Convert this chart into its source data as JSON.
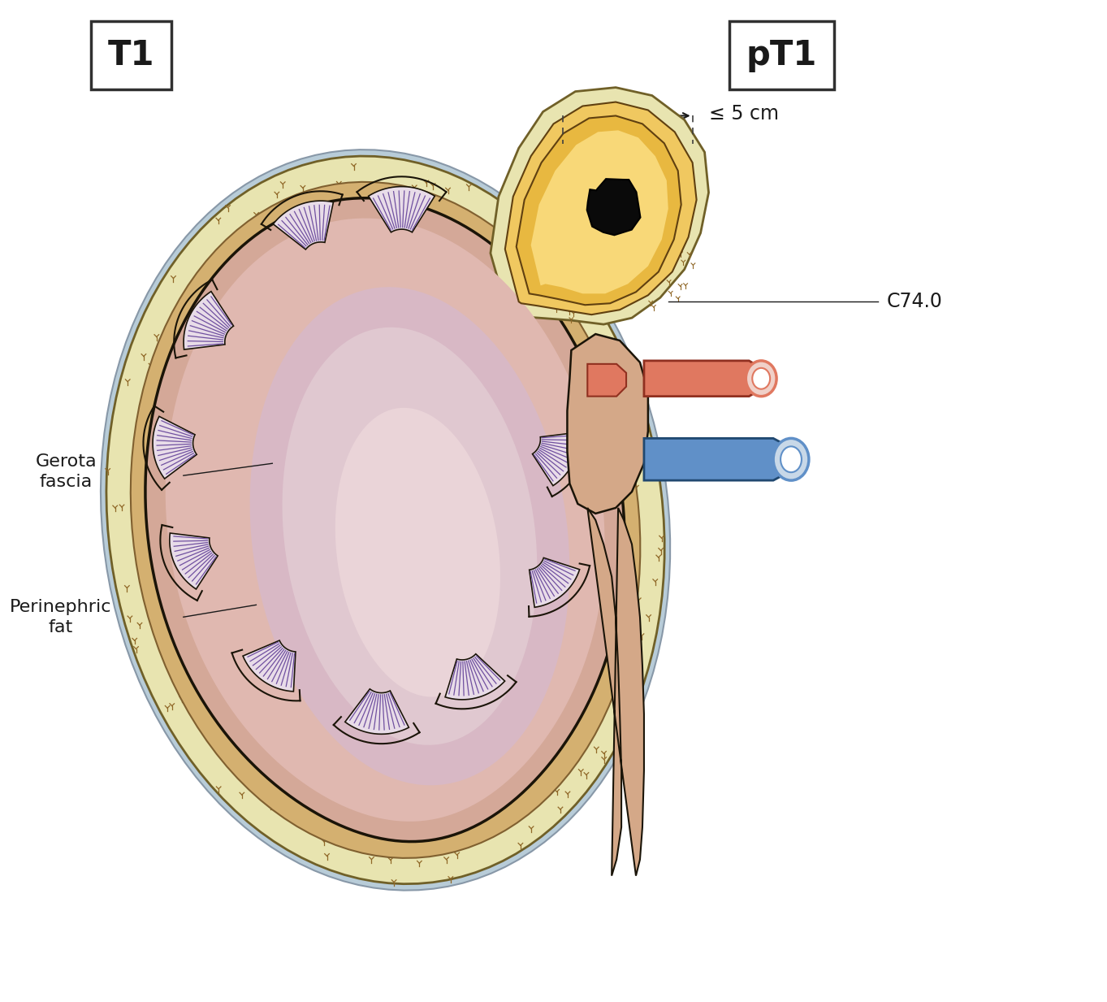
{
  "title_left": "T1",
  "title_right": "pT1",
  "label_gerota": "Gerota\nfascia",
  "label_perinephric": "Perinephric\nfat",
  "label_c74": "C74.0",
  "label_size": "≤ 5 cm",
  "bg_color": "#ffffff",
  "gerota_fascia_color": "#e8e4b0",
  "gerota_outer_blue": "#b8ccd8",
  "perinephric_fat_color": "#e0c898",
  "kidney_cortex_color": "#d4a898",
  "kidney_medulla_color": "#c8a0a8",
  "kidney_pelvis_color": "#d0b8c0",
  "calyx_wall_color": "#c0a0a8",
  "pyramid_bg_color": "#e8dce8",
  "pyramid_stripe_color": "#7050a0",
  "adrenal_gerota_color": "#e8e4b0",
  "adrenal_cortex_color": "#e8b840",
  "adrenal_bg_color": "#f0c860",
  "tumor_color": "#0a0a0a",
  "hilum_color": "#d4a888",
  "artery_color": "#e07860",
  "vein_color": "#6090c8",
  "line_color": "#1a1a1a",
  "text_color": "#1a1a1a",
  "dark_outline": "#1a1408",
  "figsize": [
    13.63,
    12.33
  ],
  "dpi": 100
}
